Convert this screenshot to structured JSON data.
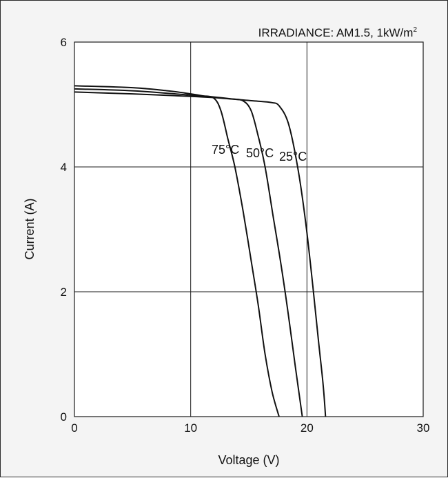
{
  "chart_data": {
    "type": "line",
    "title": "",
    "annotation": {
      "main": "IRRADIANCE: AM1.5, 1kW/m",
      "superscript": "2"
    },
    "xlabel": "Voltage (V)",
    "ylabel": "Current (A)",
    "xlim": [
      0,
      30
    ],
    "ylim": [
      0,
      6
    ],
    "xticks": [
      0,
      10,
      20,
      30
    ],
    "yticks": [
      0,
      2,
      4,
      6
    ],
    "xtick_labels": [
      "0",
      "10",
      "20",
      "30"
    ],
    "ytick_labels": [
      "0",
      "2",
      "4",
      "6"
    ],
    "grid": true,
    "series": [
      {
        "name": "75°C",
        "points": [
          [
            0,
            5.3
          ],
          [
            5,
            5.27
          ],
          [
            8,
            5.22
          ],
          [
            10,
            5.17
          ],
          [
            11,
            5.14
          ],
          [
            12,
            5.1
          ],
          [
            12.6,
            4.9
          ],
          [
            13.2,
            4.45
          ],
          [
            13.8,
            4.0
          ],
          [
            14.5,
            3.3
          ],
          [
            15.2,
            2.5
          ],
          [
            15.8,
            1.8
          ],
          [
            16.4,
            1.0
          ],
          [
            17.0,
            0.4
          ],
          [
            17.6,
            0.0
          ]
        ]
      },
      {
        "name": "50°C",
        "points": [
          [
            0,
            5.25
          ],
          [
            5,
            5.22
          ],
          [
            10,
            5.15
          ],
          [
            12,
            5.12
          ],
          [
            13.5,
            5.09
          ],
          [
            14.5,
            5.06
          ],
          [
            15.2,
            4.9
          ],
          [
            15.8,
            4.5
          ],
          [
            16.4,
            4.0
          ],
          [
            17.1,
            3.2
          ],
          [
            17.8,
            2.4
          ],
          [
            18.5,
            1.5
          ],
          [
            19.0,
            0.8
          ],
          [
            19.6,
            0.0
          ]
        ]
      },
      {
        "name": "25°C",
        "points": [
          [
            0,
            5.2
          ],
          [
            5,
            5.17
          ],
          [
            10,
            5.13
          ],
          [
            12,
            5.11
          ],
          [
            14,
            5.08
          ],
          [
            16,
            5.05
          ],
          [
            17,
            5.03
          ],
          [
            17.6,
            4.98
          ],
          [
            18.4,
            4.7
          ],
          [
            19.2,
            4.0
          ],
          [
            19.9,
            3.1
          ],
          [
            20.5,
            2.1
          ],
          [
            21.0,
            1.2
          ],
          [
            21.4,
            0.5
          ],
          [
            21.6,
            0.0
          ]
        ]
      }
    ],
    "curve_labels": [
      {
        "text": "75°C",
        "series": 0
      },
      {
        "text": "50°C",
        "series": 1
      },
      {
        "text": "25°C",
        "series": 2
      }
    ],
    "colors": {
      "line": "#111111",
      "grid": "#1a1a1a",
      "plot_bg": "#ffffff"
    }
  }
}
